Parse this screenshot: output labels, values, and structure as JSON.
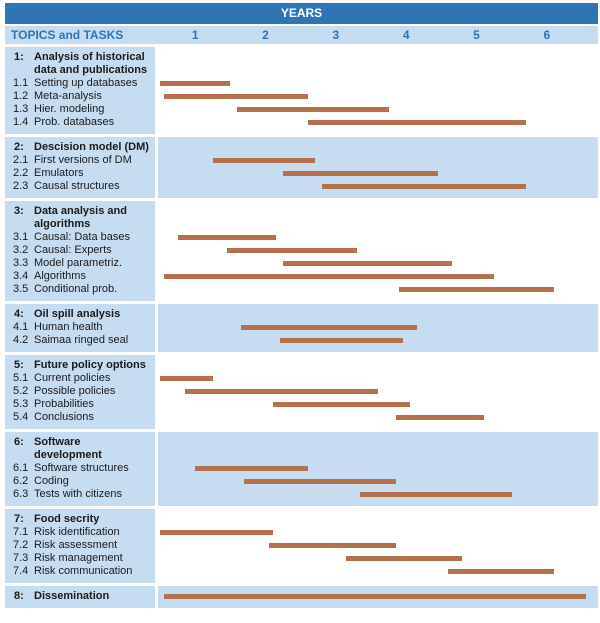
{
  "chart_data": {
    "type": "gantt",
    "title": "YEARS",
    "header": "TOPICS and TASKS",
    "xlim": [
      0,
      6
    ],
    "years": [
      1,
      2,
      3,
      4,
      5,
      6
    ],
    "title_color": "#2f74b5",
    "band_color": "#c6dcf1",
    "bar_color": "#b5704d",
    "groups": [
      {
        "number": "1:",
        "title_lines": [
          "Analysis of historical",
          "data and publications"
        ],
        "tasks": [
          {
            "id": "1.1",
            "label": "Setting up databases",
            "start": 0,
            "end": 1.0
          },
          {
            "id": "1.2",
            "label": "Meta-analysis",
            "start": 0.05,
            "end": 2.1
          },
          {
            "id": "1.3",
            "label": "Hier. modeling",
            "start": 1.1,
            "end": 3.25
          },
          {
            "id": "1.4",
            "label": "Prob. databases",
            "start": 2.1,
            "end": 5.2
          }
        ]
      },
      {
        "number": "2:",
        "title_lines": [
          "Descision model (DM)"
        ],
        "tasks": [
          {
            "id": "2.1",
            "label": "First versions of DM",
            "start": 0.75,
            "end": 2.2
          },
          {
            "id": "2.2",
            "label": "Emulators",
            "start": 1.75,
            "end": 3.95
          },
          {
            "id": "2.3",
            "label": "Causal structures",
            "start": 2.3,
            "end": 5.2
          }
        ]
      },
      {
        "number": "3:",
        "title_lines": [
          "Data analysis and",
          "algorithms"
        ],
        "tasks": [
          {
            "id": "3.1",
            "label": "Causal: Data bases",
            "start": 0.25,
            "end": 1.65
          },
          {
            "id": "3.2",
            "label": "Causal: Experts",
            "start": 0.95,
            "end": 2.8
          },
          {
            "id": "3.3",
            "label": "Model parametriz.",
            "start": 1.75,
            "end": 4.15
          },
          {
            "id": "3.4",
            "label": "Algorithms",
            "start": 0.05,
            "end": 4.75
          },
          {
            "id": "3.5",
            "label": "Conditional prob.",
            "start": 3.4,
            "end": 5.6
          }
        ]
      },
      {
        "number": "4:",
        "title_lines": [
          "Oil spill analysis"
        ],
        "tasks": [
          {
            "id": "4.1",
            "label": "Human health",
            "start": 1.15,
            "end": 3.65
          },
          {
            "id": "4.2",
            "label": "Saimaa ringed seal",
            "start": 1.7,
            "end": 3.45
          }
        ]
      },
      {
        "number": "5:",
        "title_lines": [
          "Future policy options"
        ],
        "tasks": [
          {
            "id": "5.1",
            "label": "Current policies",
            "start": 0,
            "end": 0.75
          },
          {
            "id": "5.2",
            "label": "Possible policies",
            "start": 0.35,
            "end": 3.1
          },
          {
            "id": "5.3",
            "label": "Probabilities",
            "start": 1.6,
            "end": 3.55
          },
          {
            "id": "5.4",
            "label": "Conclusions",
            "start": 3.35,
            "end": 4.6
          }
        ]
      },
      {
        "number": "6:",
        "title_lines": [
          "Software",
          "development"
        ],
        "tasks": [
          {
            "id": "6.1",
            "label": "Software structures",
            "start": 0.5,
            "end": 2.1
          },
          {
            "id": "6.2",
            "label": "Coding",
            "start": 1.2,
            "end": 3.35
          },
          {
            "id": "6.3",
            "label": "Tests with citizens",
            "start": 2.85,
            "end": 5.0
          }
        ]
      },
      {
        "number": "7:",
        "title_lines": [
          "Food secrity"
        ],
        "tasks": [
          {
            "id": "7.1",
            "label": "Risk identification",
            "start": 0,
            "end": 1.6
          },
          {
            "id": "7.2",
            "label": "Risk assessment",
            "start": 1.55,
            "end": 3.35
          },
          {
            "id": "7.3",
            "label": "Risk management",
            "start": 2.65,
            "end": 4.3
          },
          {
            "id": "7.4",
            "label": "Risk communication",
            "start": 4.1,
            "end": 5.6
          }
        ]
      },
      {
        "number": "8:",
        "title_lines": [
          "Dissemination"
        ],
        "start": 0.05,
        "end": 6.05,
        "tasks": []
      }
    ]
  }
}
